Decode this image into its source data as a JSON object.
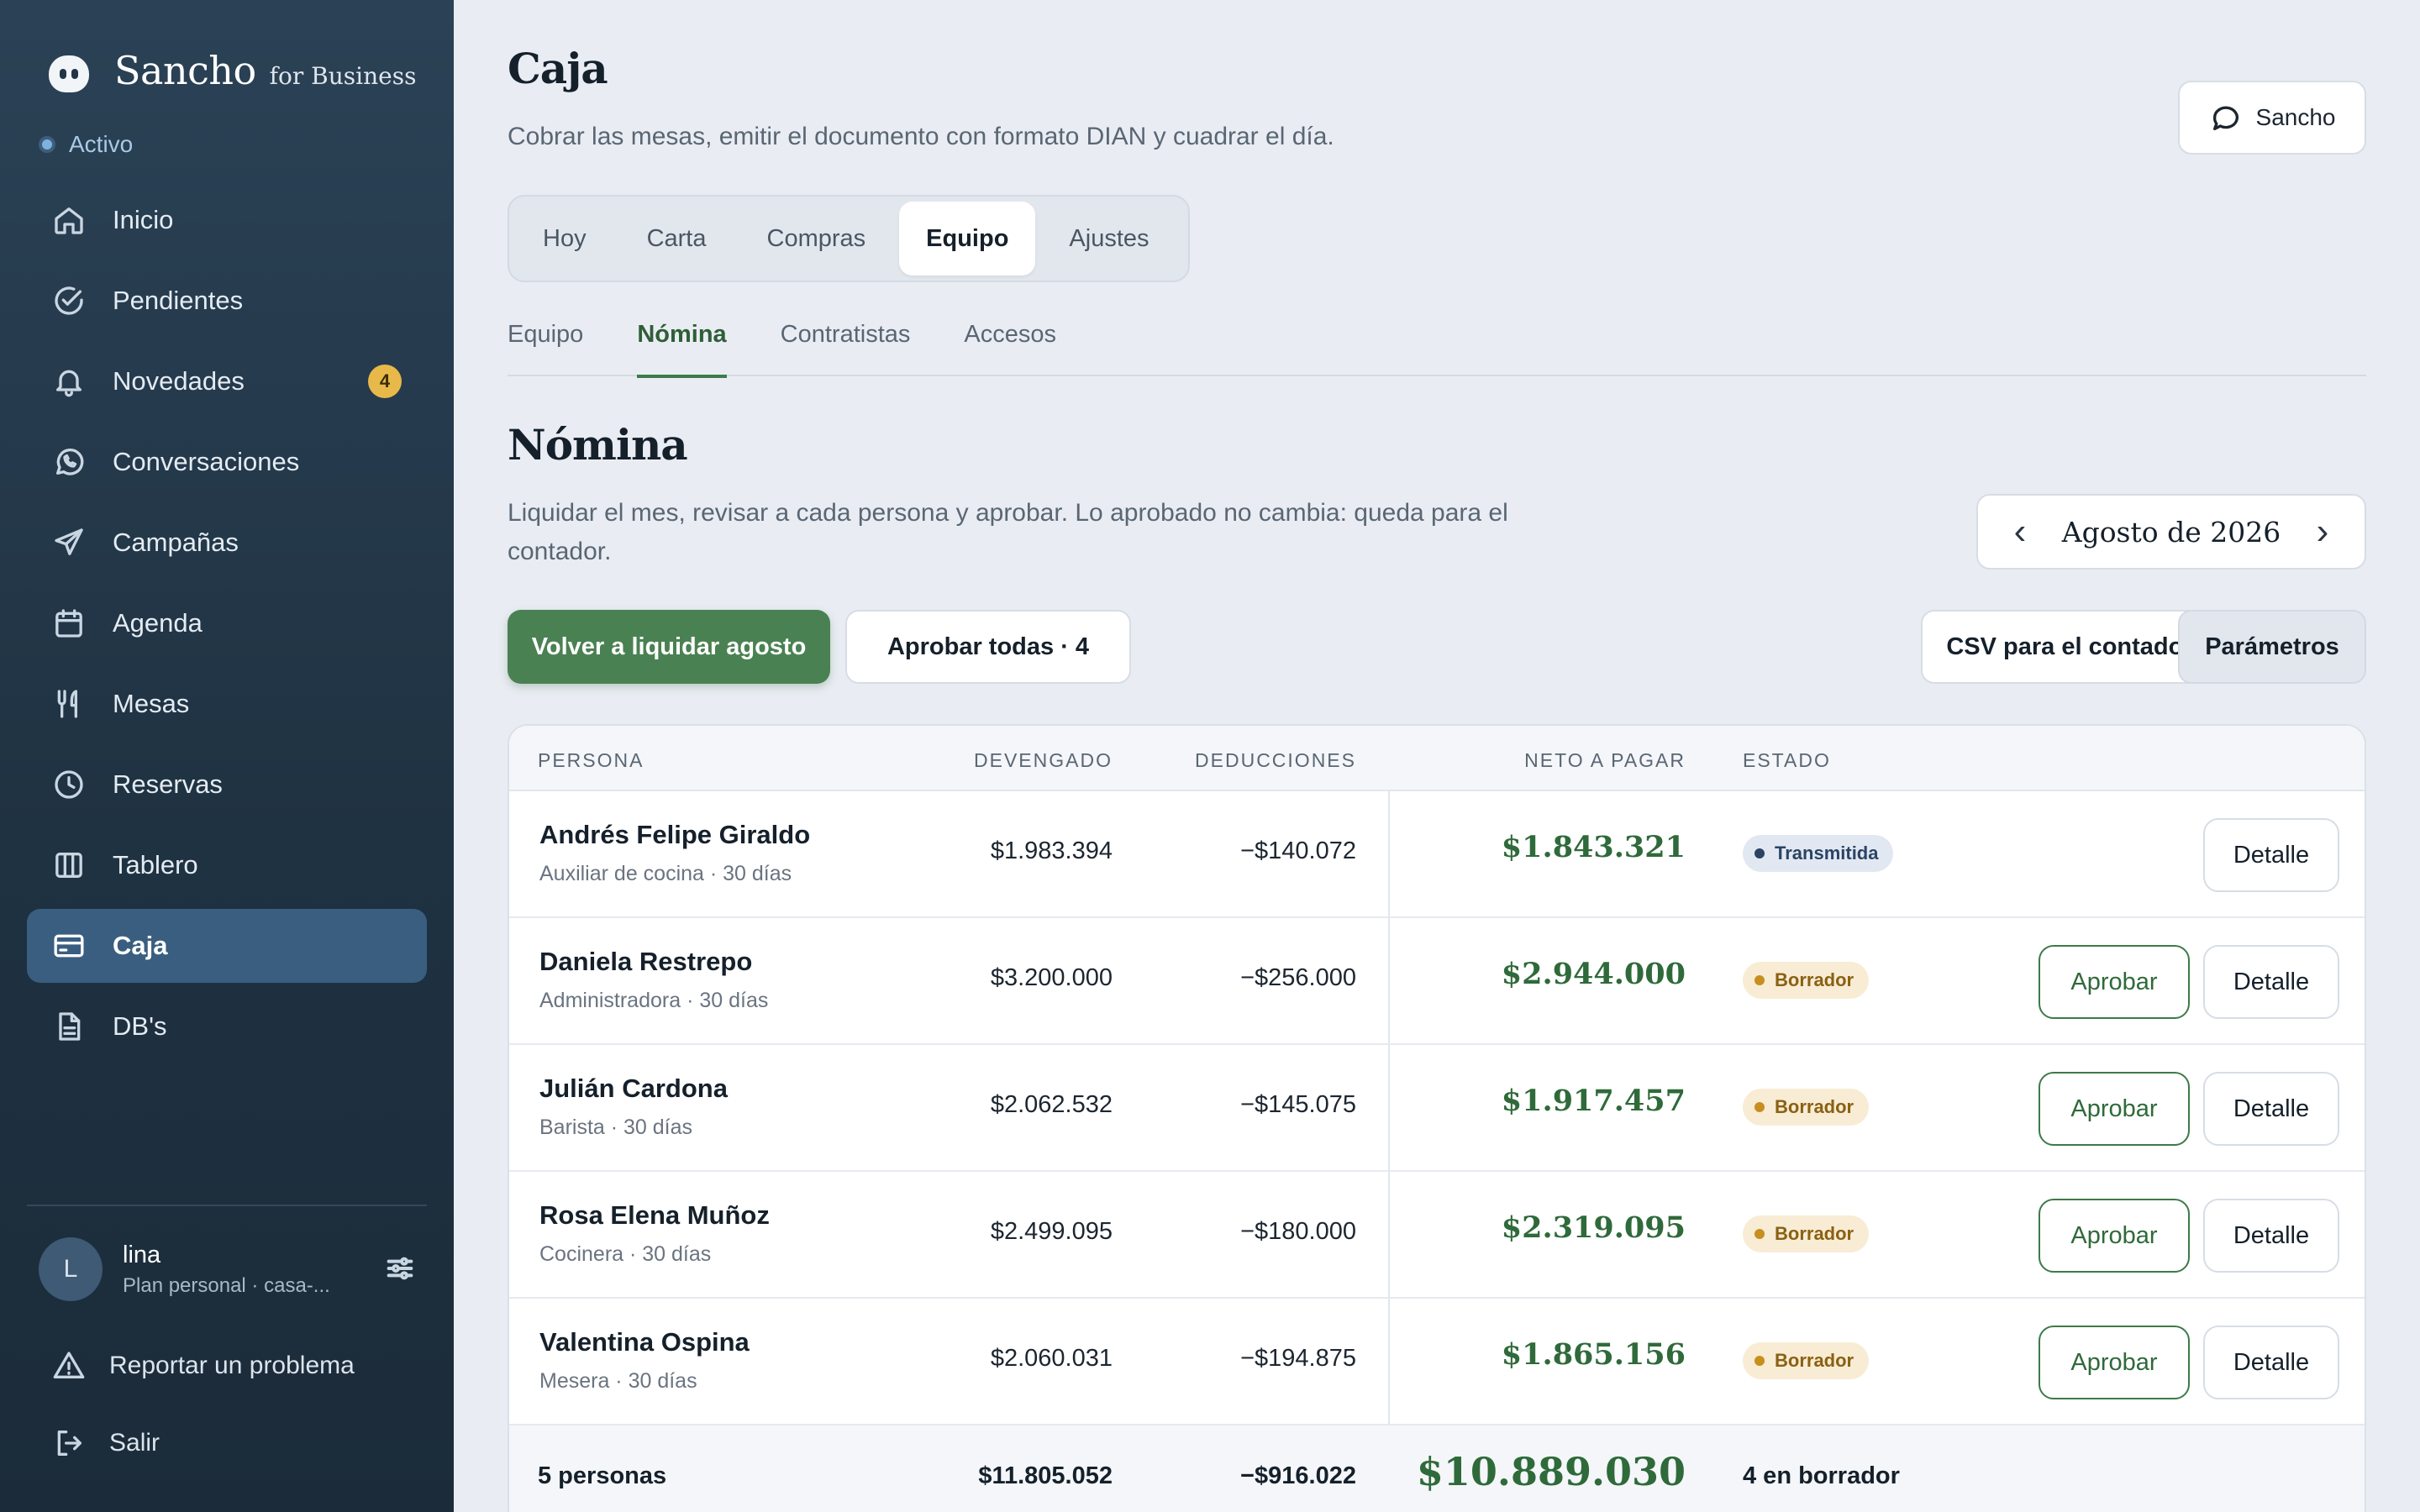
{
  "brand": {
    "name": "Sancho",
    "sub": "for Business",
    "status": "Activo"
  },
  "sidebar": {
    "items": [
      {
        "label": "Inicio",
        "icon": "home-icon"
      },
      {
        "label": "Pendientes",
        "icon": "check-circle-icon"
      },
      {
        "label": "Novedades",
        "icon": "bell-icon",
        "badge": "4"
      },
      {
        "label": "Conversaciones",
        "icon": "whatsapp-icon"
      },
      {
        "label": "Campañas",
        "icon": "send-icon"
      },
      {
        "label": "Agenda",
        "icon": "calendar-icon"
      },
      {
        "label": "Mesas",
        "icon": "utensils-icon"
      },
      {
        "label": "Reservas",
        "icon": "clock-icon"
      },
      {
        "label": "Tablero",
        "icon": "columns-icon"
      },
      {
        "label": "Caja",
        "icon": "credit-card-icon",
        "active": true
      },
      {
        "label": "DB's",
        "icon": "file-icon"
      }
    ],
    "user": {
      "initial": "L",
      "name": "lina",
      "plan": "Plan personal · casa-..."
    },
    "footer": {
      "report": "Reportar un problema",
      "logout": "Salir"
    }
  },
  "header": {
    "title": "Caja",
    "subtitle": "Cobrar las mesas, emitir el documento con formato DIAN y cuadrar el día.",
    "assistant_button": "Sancho"
  },
  "tabs": [
    "Hoy",
    "Carta",
    "Compras",
    "Equipo",
    "Ajustes"
  ],
  "subtabs": [
    "Equipo",
    "Nómina",
    "Contratistas",
    "Accesos"
  ],
  "section": {
    "title": "Nómina",
    "description": "Liquidar el mes, revisar a cada persona y aprobar. Lo aprobado no cambia: queda para el contador.",
    "month": "Agosto de 2026",
    "prev": "‹",
    "next": "›"
  },
  "actions": {
    "reliquidate": "Volver a liquidar agosto",
    "approve_all": "Aprobar todas · 4",
    "csv": "CSV para el contador",
    "params": "Parámetros"
  },
  "table": {
    "headers": {
      "person": "PERSONA",
      "earned": "DEVENGADO",
      "deductions": "DEDUCCIONES",
      "net": "NETO A PAGAR",
      "status": "ESTADO"
    },
    "approve_label": "Aprobar",
    "detail_label": "Detalle",
    "rows": [
      {
        "name": "Andrés Felipe Giraldo",
        "role": "Auxiliar de cocina · 30 días",
        "earned": "$1.983.394",
        "deductions": "−$140.072",
        "net": "$1.843.321",
        "status": "Transmitida"
      },
      {
        "name": "Daniela Restrepo",
        "role": "Administradora · 30 días",
        "earned": "$3.200.000",
        "deductions": "−$256.000",
        "net": "$2.944.000",
        "status": "Borrador"
      },
      {
        "name": "Julián Cardona",
        "role": "Barista · 30 días",
        "earned": "$2.062.532",
        "deductions": "−$145.075",
        "net": "$1.917.457",
        "status": "Borrador"
      },
      {
        "name": "Rosa Elena Muñoz",
        "role": "Cocinera · 30 días",
        "earned": "$2.499.095",
        "deductions": "−$180.000",
        "net": "$2.319.095",
        "status": "Borrador"
      },
      {
        "name": "Valentina Ospina",
        "role": "Mesera · 30 días",
        "earned": "$2.060.031",
        "deductions": "−$194.875",
        "net": "$1.865.156",
        "status": "Borrador"
      }
    ],
    "footer": {
      "count": "5 personas",
      "earned": "$11.805.052",
      "deductions": "−$916.022",
      "net": "$10.889.030",
      "status": "4 en borrador"
    }
  },
  "colors": {
    "accent": "#4a8152",
    "sidebar": "#223546",
    "draft": "#c78f1f",
    "sent": "#2b4464"
  }
}
